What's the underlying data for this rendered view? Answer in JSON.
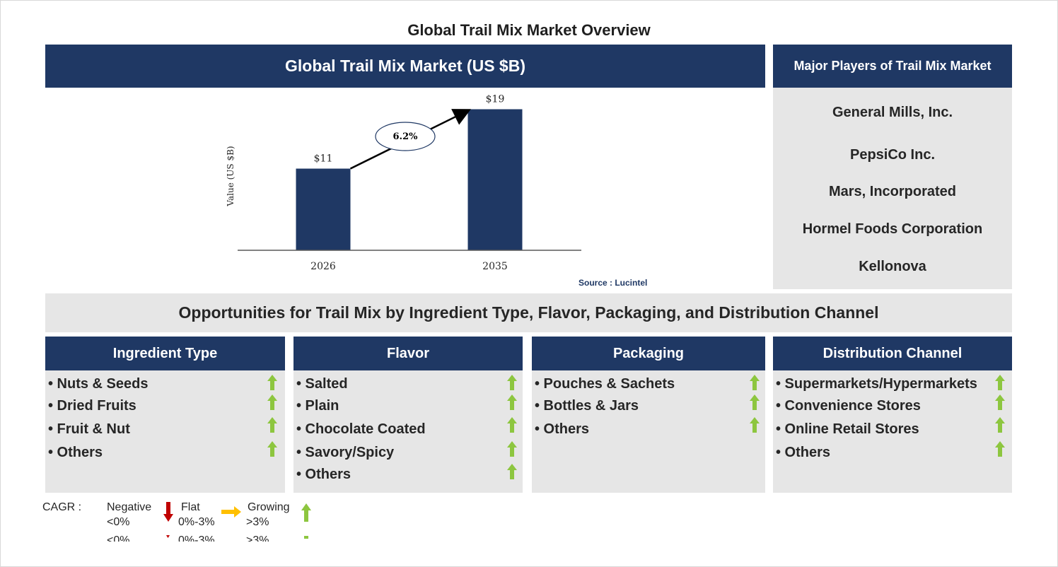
{
  "page_title": "Global Trail Mix Market Overview",
  "chart_header": "Global Trail Mix Market (US $B)",
  "chart_data": {
    "type": "bar",
    "categories": [
      "2026",
      "2035"
    ],
    "values": [
      11,
      19
    ],
    "data_labels": [
      "$11",
      "$19"
    ],
    "ylabel": "Value (US $B)",
    "ylim": [
      0,
      20
    ],
    "annotation": "6.2%",
    "grid": false
  },
  "source_text": "Source : Lucintel",
  "players": {
    "header": "Major Players of Trail Mix Market",
    "items": [
      "General Mills, Inc.",
      "PepsiCo Inc.",
      "Mars, Incorporated",
      "Hormel Foods Corporation",
      "Kellonova"
    ]
  },
  "opportunities_title": "Opportunities for Trail Mix by Ingredient Type, Flavor, Packaging, and Distribution Channel",
  "segments": [
    {
      "title": "Ingredient Type",
      "items": [
        "• Nuts & Seeds",
        "• Dried Fruits",
        "• Fruit & Nut",
        "• Others"
      ]
    },
    {
      "title": "Flavor",
      "items": [
        "• Salted",
        "• Plain",
        "• Chocolate Coated",
        "• Savory/Spicy",
        "• Others"
      ]
    },
    {
      "title": "Packaging",
      "items": [
        "• Pouches & Sachets",
        "• Bottles & Jars",
        "• Others"
      ]
    },
    {
      "title": "Distribution Channel",
      "items": [
        "• Supermarkets/Hypermarkets",
        "• Convenience Stores",
        "• Online Retail Stores",
        "• Others"
      ]
    }
  ],
  "legend": {
    "label": "CAGR :",
    "negative": "Negative",
    "negative_range": "<0%",
    "flat": "Flat",
    "flat_range": "0%-3%",
    "growing": "Growing",
    "growing_range": ">3%"
  },
  "colors": {
    "navy": "#1f3864",
    "panel_grey": "#e6e6e6",
    "growth_arrow": "#8dc63f",
    "negative_arrow": "#c00000",
    "flat_arrow": "#ffc000"
  },
  "icons": {
    "growth": "up-arrow-icon",
    "negative": "down-arrow-icon",
    "flat": "right-arrow-icon"
  }
}
